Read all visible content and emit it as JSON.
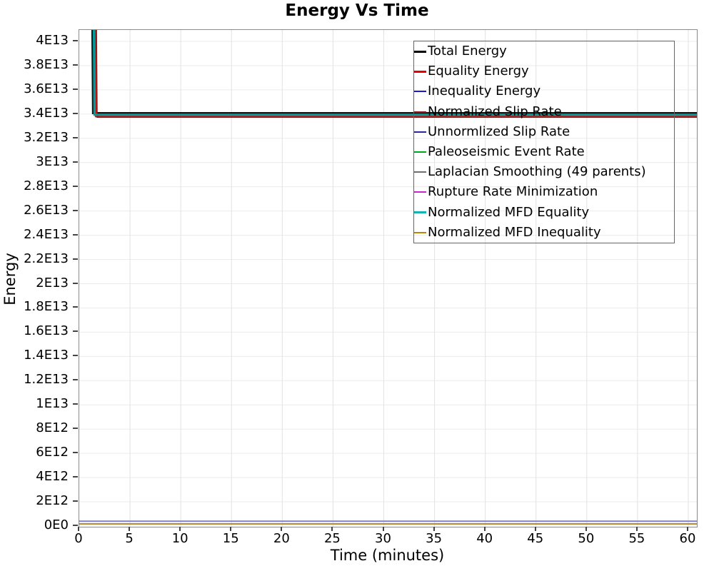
{
  "chart_data": {
    "type": "line",
    "title": "Energy Vs Time",
    "xlabel": "Time (minutes)",
    "ylabel": "Energy",
    "xlim": [
      0,
      60.85
    ],
    "ylim": [
      0,
      40940000000000.0
    ],
    "grid": true,
    "legend_position": "top-right",
    "x_ticks": [
      0,
      5,
      10,
      15,
      20,
      25,
      30,
      35,
      40,
      45,
      50,
      55,
      60
    ],
    "y_ticks": [
      {
        "value": 0,
        "label": "0E0"
      },
      {
        "value": 2000000000000.0,
        "label": "2E12"
      },
      {
        "value": 4000000000000.0,
        "label": "4E12"
      },
      {
        "value": 6000000000000.0,
        "label": "6E12"
      },
      {
        "value": 8000000000000.0,
        "label": "8E12"
      },
      {
        "value": 10000000000000.0,
        "label": "1E13"
      },
      {
        "value": 12000000000000.0,
        "label": "1.2E13"
      },
      {
        "value": 14000000000000.0,
        "label": "1.4E13"
      },
      {
        "value": 16000000000000.0,
        "label": "1.6E13"
      },
      {
        "value": 18000000000000.0,
        "label": "1.8E13"
      },
      {
        "value": 20000000000000.0,
        "label": "2E13"
      },
      {
        "value": 22000000000000.0,
        "label": "2.2E13"
      },
      {
        "value": 24000000000000.0,
        "label": "2.4E13"
      },
      {
        "value": 26000000000000.0,
        "label": "2.6E13"
      },
      {
        "value": 28000000000000.0,
        "label": "2.8E13"
      },
      {
        "value": 30000000000000.0,
        "label": "3E13"
      },
      {
        "value": 32000000000000.0,
        "label": "3.2E13"
      },
      {
        "value": 34000000000000.0,
        "label": "3.4E13"
      },
      {
        "value": 36000000000000.0,
        "label": "3.6E13"
      },
      {
        "value": 38000000000000.0,
        "label": "3.8E13"
      },
      {
        "value": 40000000000000.0,
        "label": "4E13"
      }
    ],
    "series": [
      {
        "name": "Total Energy",
        "color": "#000000",
        "render_color": "#141414",
        "line_width": 3,
        "points": [
          [
            1.28,
            43000000000000.0
          ],
          [
            1.36,
            34080000000000.0
          ],
          [
            60.85,
            34080000000000.0
          ]
        ]
      },
      {
        "name": "Equality Energy",
        "color": "#e60000",
        "render_color": "#cf1f1f",
        "line_width": 3,
        "points": [
          [
            1.56,
            43000000000000.0
          ],
          [
            1.64,
            33820000000000.0
          ],
          [
            60.85,
            33820000000000.0
          ]
        ]
      },
      {
        "name": "Inequality Energy",
        "color": "#1a1acc",
        "render_color": "#8080cc",
        "line_width": 2,
        "points": [
          [
            0,
            400000000000.0
          ],
          [
            60.85,
            400000000000.0
          ]
        ]
      },
      {
        "name": "Normalized Slip Rate",
        "color": "#8b1a1a",
        "render_color": "#7e1a1a",
        "line_width": 1.5,
        "points": [
          [
            1.68,
            43000000000000.0
          ],
          [
            1.76,
            33740000000000.0
          ],
          [
            60.85,
            33740000000000.0
          ]
        ]
      },
      {
        "name": "Unnormlized Slip Rate",
        "color": "#28289b",
        "line_width": 2,
        "points": [
          [
            0,
            180000000000.0
          ],
          [
            60.85,
            180000000000.0
          ]
        ]
      },
      {
        "name": "Paleoseismic Event Rate",
        "color": "#00a81e",
        "line_width": 2,
        "points": [
          [
            0,
            180000000000.0
          ],
          [
            60.85,
            180000000000.0
          ]
        ]
      },
      {
        "name": "Laplacian Smoothing (49 parents)",
        "color": "#6e6e6e",
        "line_width": 2,
        "points": [
          [
            0,
            180000000000.0
          ],
          [
            60.85,
            180000000000.0
          ]
        ]
      },
      {
        "name": "Rupture Rate Minimization",
        "color": "#c828c8",
        "line_width": 2,
        "points": [
          [
            0,
            180000000000.0
          ],
          [
            60.85,
            180000000000.0
          ]
        ]
      },
      {
        "name": "Normalized MFD Equality",
        "color": "#18b2b2",
        "render_color": "#009c9c",
        "line_width": 3,
        "points": [
          [
            1.42,
            43000000000000.0
          ],
          [
            1.5,
            33950000000000.0
          ],
          [
            60.85,
            33950000000000.0
          ]
        ]
      },
      {
        "name": "Normalized MFD Inequality",
        "color": "#b8860b",
        "render_color": "#b8863b",
        "line_width": 2,
        "points": [
          [
            0,
            180000000000.0
          ],
          [
            60.85,
            180000000000.0
          ]
        ]
      }
    ],
    "grid_color_vertical": "#e2e2e2",
    "grid_color_horizontal": "#ebebeb",
    "axis_border_color": "#8a8a8a"
  }
}
